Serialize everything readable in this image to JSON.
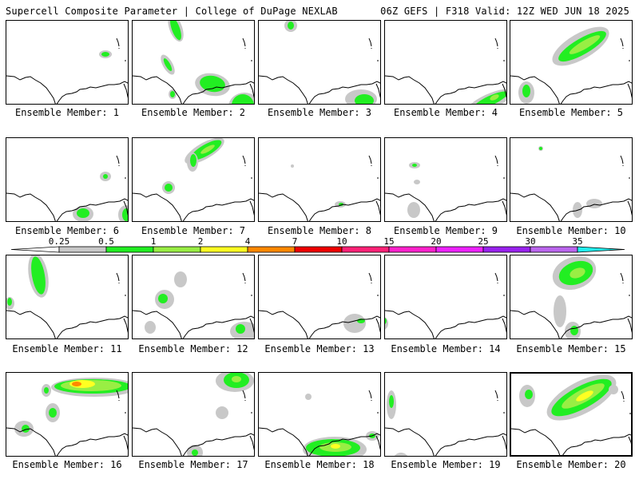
{
  "header": {
    "title": "Supercell Composite Parameter | College of DuPage NEXLAB",
    "run_info": "06Z GEFS | F318 Valid: 12Z WED JUN 18 2025"
  },
  "members": [
    "Ensemble Member: 1",
    "Ensemble Member: 2",
    "Ensemble Member: 3",
    "Ensemble Member: 4",
    "Ensemble Member: 5",
    "Ensemble Member: 6",
    "Ensemble Member: 7",
    "Ensemble Member: 8",
    "Ensemble Member: 9",
    "Ensemble Member: 10",
    "Ensemble Member: 11",
    "Ensemble Member: 12",
    "Ensemble Member: 13",
    "Ensemble Member: 14",
    "Ensemble Member: 15",
    "Ensemble Member: 16",
    "Ensemble Member: 17",
    "Ensemble Member: 18",
    "Ensemble Member: 19",
    "Ensemble Member: 20"
  ],
  "selected_member": "Ensemble Member: 20",
  "colorbar": {
    "labels": [
      "0.25",
      "0.5",
      "1",
      "2",
      "4",
      "7",
      "10",
      "15",
      "20",
      "25",
      "30",
      "35"
    ],
    "colors": [
      "#c8c8c8",
      "#22ee22",
      "#99ee44",
      "#ffff22",
      "#ff8800",
      "#ee0000",
      "#ff2277",
      "#ff22cc",
      "#ee22ff",
      "#9922ee",
      "#bb66ee",
      "#22eeee"
    ]
  }
}
